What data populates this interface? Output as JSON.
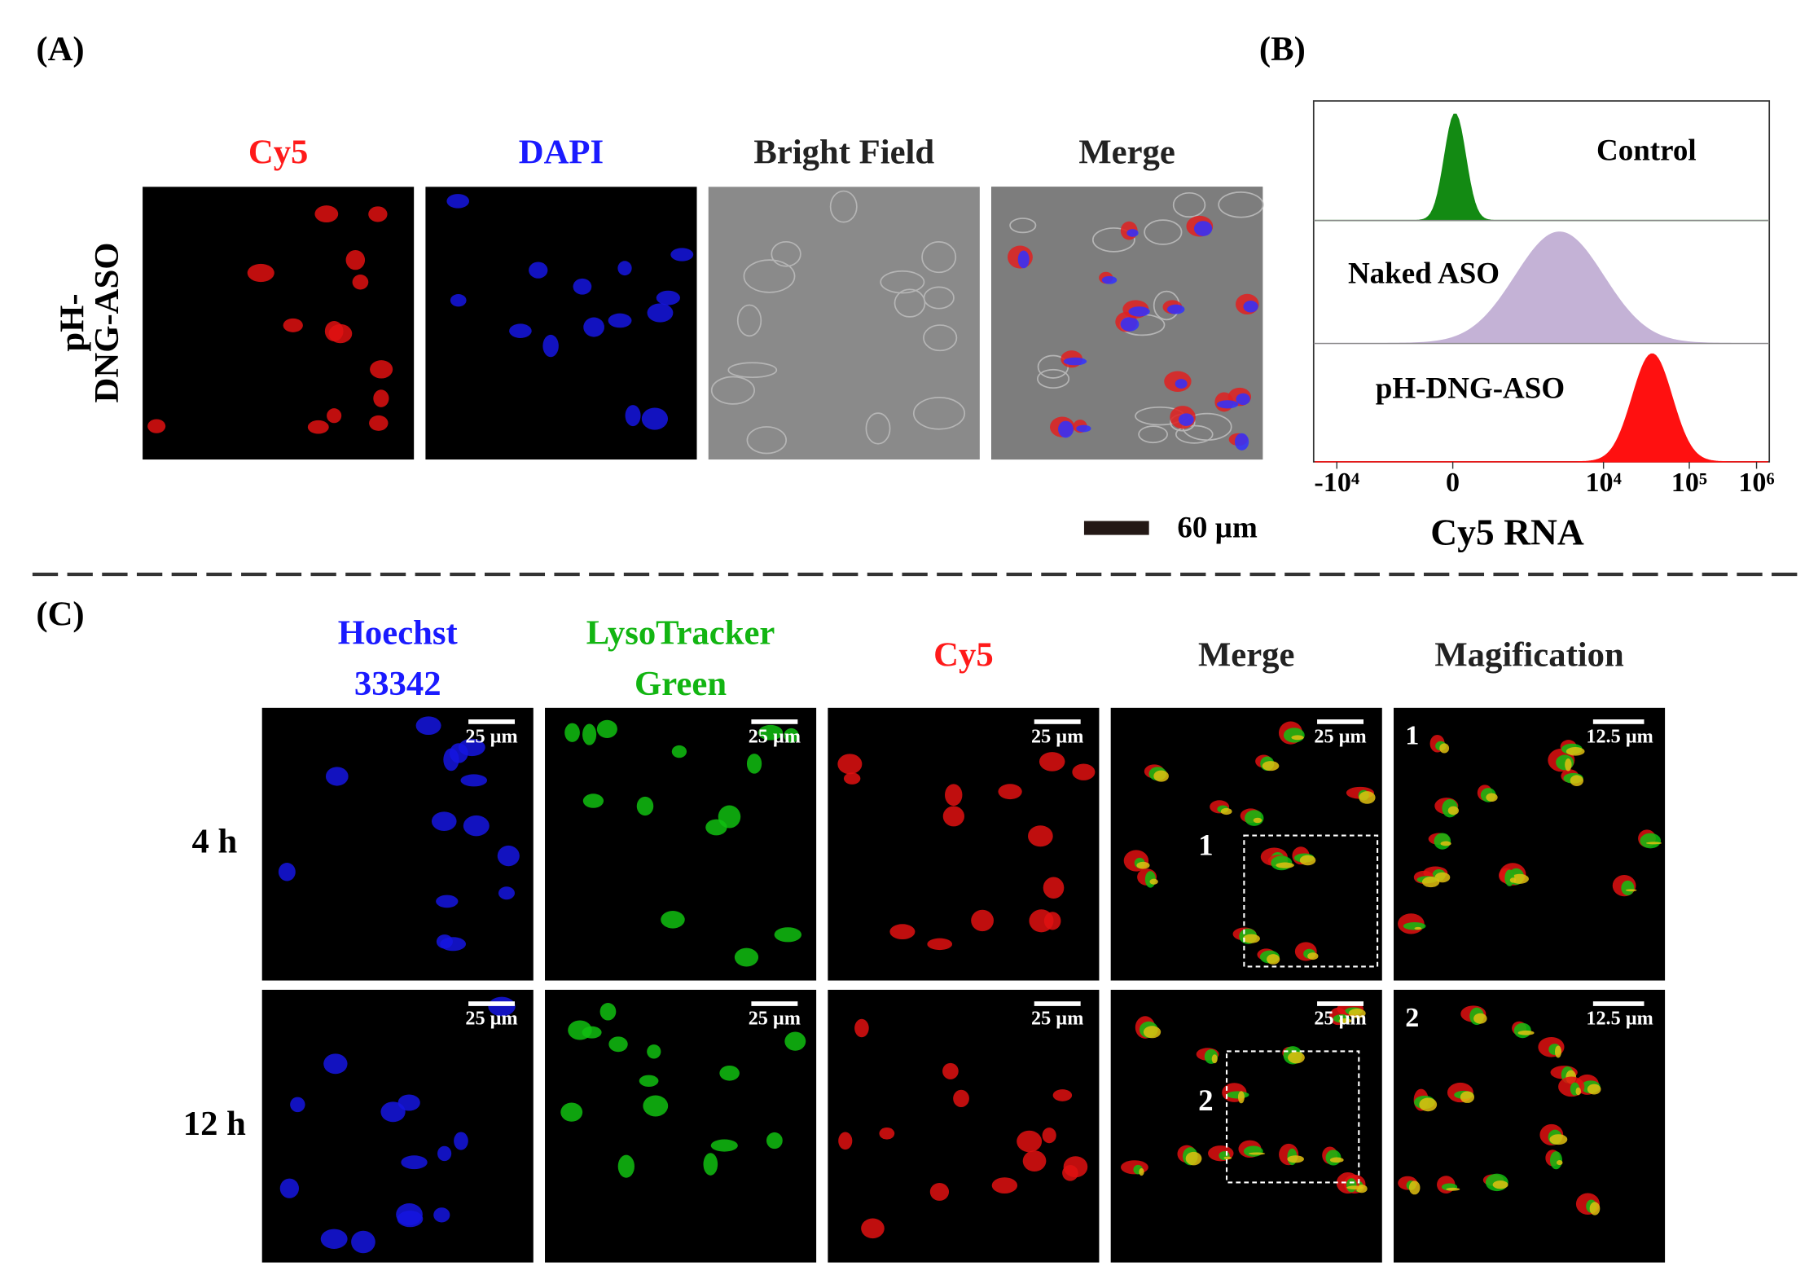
{
  "panel_a": {
    "label": "(A)",
    "row_label": [
      "pH-",
      "DNG-ASO"
    ],
    "columns": [
      {
        "lines": [
          "Cy5"
        ],
        "color": "#ff1a1a"
      },
      {
        "lines": [
          "DAPI"
        ],
        "color": "#1a1aff"
      },
      {
        "lines": [
          "Bright Field"
        ],
        "color": "#222222"
      },
      {
        "lines": [
          "Merge"
        ],
        "color": "#222222"
      }
    ],
    "scale_bar": "60 µm"
  },
  "panel_b": {
    "label": "(B)",
    "samples": [
      {
        "name": "Control",
        "color": "#138a13"
      },
      {
        "name": "Naked ASO",
        "color": "#c4b2d6"
      },
      {
        "name": "pH-DNG-ASO",
        "color": "#ff1010"
      }
    ],
    "x_ticks": [
      "-10⁴",
      "0",
      "10⁴",
      "10⁵",
      "10⁶"
    ],
    "x_label": "Cy5 RNA"
  },
  "panel_c": {
    "label": "(C)",
    "columns": [
      {
        "lines": [
          "Hoechst",
          "33342"
        ],
        "color": "#1a1aff"
      },
      {
        "lines": [
          "LysoTracker",
          "Green"
        ],
        "color": "#12b512"
      },
      {
        "lines": [
          "Cy5"
        ],
        "color": "#ff1a1a"
      },
      {
        "lines": [
          "Merge"
        ],
        "color": "#222222"
      },
      {
        "lines": [
          "Magification"
        ],
        "color": "#222222"
      }
    ],
    "rows": [
      "4 h",
      "12 h"
    ],
    "scale_bar": "25 µm",
    "zoom_scale_bar": "12.5 µm",
    "regions": [
      "1",
      "2"
    ]
  }
}
